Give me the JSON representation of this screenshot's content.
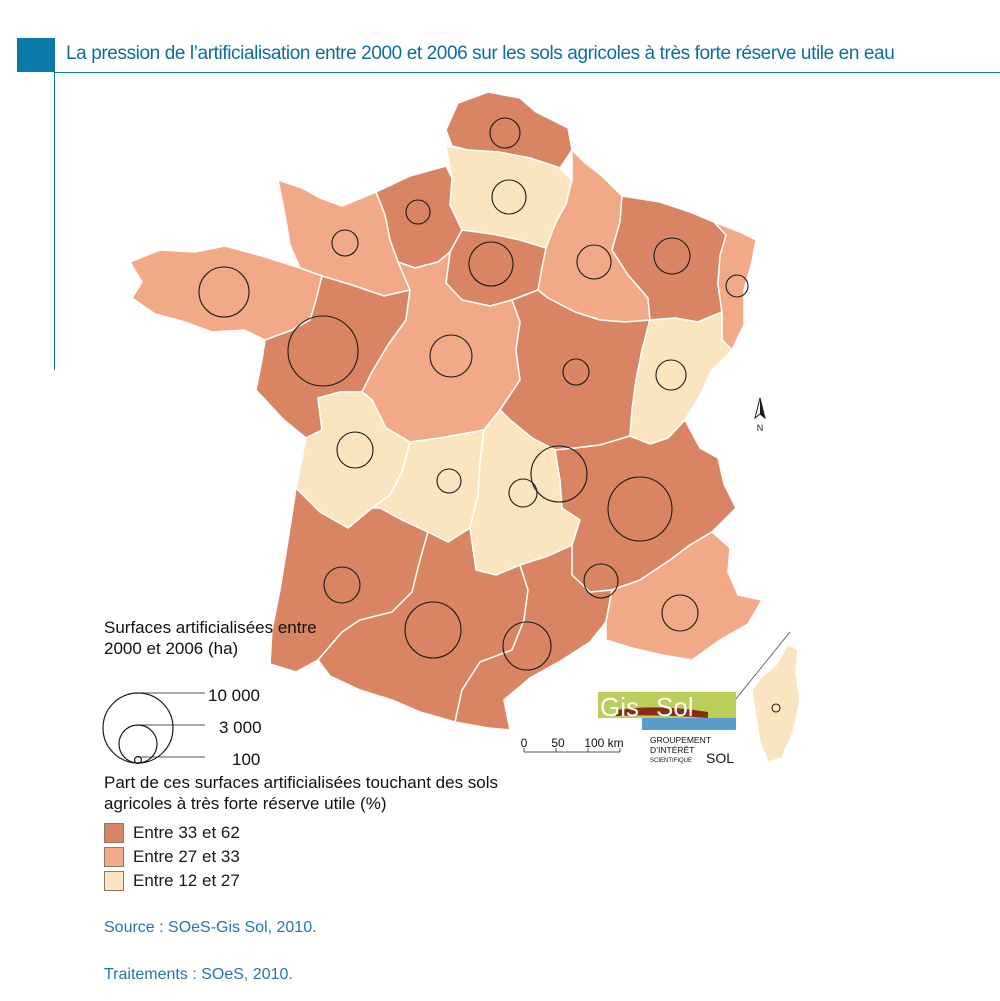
{
  "title": "La pression de l’artificialisation entre 2000 et 2006 sur les sols agricoles à très forte réserve utile en eau",
  "colors": {
    "accent": "#0a7aa8",
    "class_high": "#d98563",
    "class_mid": "#f1a987",
    "class_low": "#fbe5c0",
    "region_border": "#ffffff",
    "circle_stroke": "#1a1a1a",
    "source_text": "#2474b5"
  },
  "legend_size": {
    "title": "Surfaces artificialisées entre 2000 et 2006 (ha)",
    "values": [
      "10 000",
      "3 000",
      "100"
    ]
  },
  "legend_class": {
    "title": "Part de ces surfaces artificialisées touchant des sols agricoles à très forte réserve utile (%)",
    "items": [
      {
        "label": "Entre 33 et 62",
        "color": "#d98563"
      },
      {
        "label": "Entre 27 et 33",
        "color": "#f1a987"
      },
      {
        "label": "Entre 12 et 27",
        "color": "#fbe5c0"
      }
    ]
  },
  "scale_bar": {
    "labels": [
      "0",
      "50",
      "100 km"
    ]
  },
  "north_arrow": {
    "label": "N",
    "icon": "north-arrow-icon"
  },
  "logo": {
    "gis": "Gis",
    "sol": "Sol",
    "line1": "GROUPEMENT",
    "line2": "D’INTÉRÊT",
    "line3": "SCIENTIFIQUE",
    "line3_sol": "SOL"
  },
  "source": "Source : SOeS-Gis Sol, 2010.",
  "processing": "Traitements : SOeS, 2010."
}
